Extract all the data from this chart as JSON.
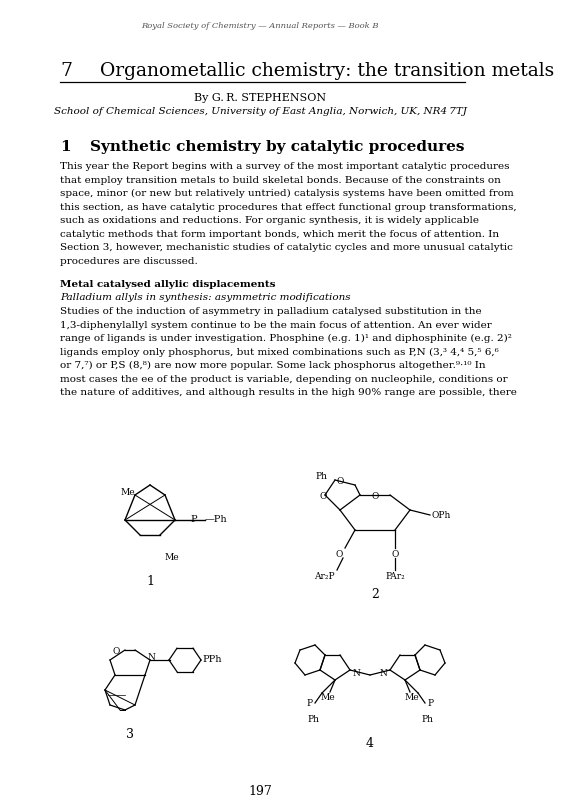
{
  "bg_color": "#ffffff",
  "header_text": "Royal Society of Chemistry — Annual Reports — Book B",
  "body_lines_1": [
    "This year the Report begins with a survey of the most important catalytic procedures",
    "that employ transition metals to build skeletal bonds. Because of the constraints on",
    "space, minor (or new but relatively untried) catalysis systems have been omitted from",
    "this section, as have catalytic procedures that effect functional group transformations,",
    "such as oxidations and reductions. For organic synthesis, it is widely applicable",
    "catalytic methods that form important bonds, which merit the focus of attention. In",
    "Section 3, however, mechanistic studies of catalytic cycles and more unusual catalytic",
    "procedures are discussed."
  ],
  "body_lines_2": [
    "Studies of the induction of asymmetry in palladium catalysed substitution in the",
    "1,3-diphenylallyl system continue to be the main focus of attention. An ever wider",
    "range of ligands is under investigation. Phosphine (e.g. 1)¹ and diphosphinite (e.g. 2)²",
    "ligands employ only phosphorus, but mixed combinations such as P,N (3,³ 4,⁴ 5,⁵ 6,⁶",
    "or 7,⁷) or P,S (8,⁸) are now more popular. Some lack phosphorus altogether.⁹·¹⁰ In",
    "most cases the ee of the product is variable, depending on nucleophile, conditions or",
    "the nature of additives, and although results in the high 90% range are possible, there"
  ],
  "page_number": "197",
  "lm": 0.1,
  "rm": 0.92
}
